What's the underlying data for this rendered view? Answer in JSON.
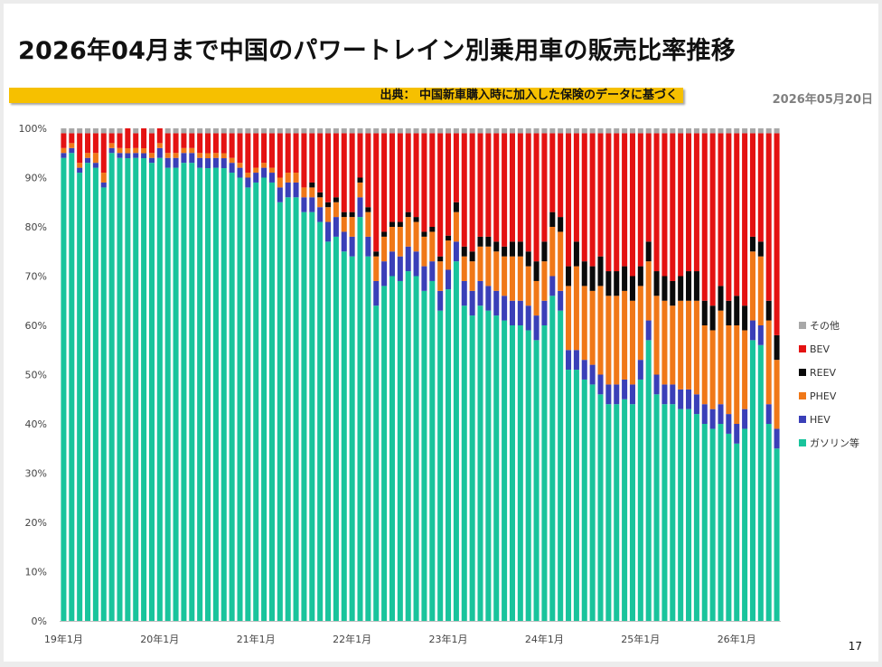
{
  "header": {
    "title": "2026年04月まで中国のパワートレイン別乗用車の販売比率推移",
    "source": "出典： 中国新車購入時に加入した保険のデータに基づく",
    "date": "2026年05月20日",
    "page_number": "17"
  },
  "chart_data": {
    "type": "bar",
    "stacked": true,
    "title": "",
    "xlabel": "",
    "ylabel": "",
    "ylim": [
      0,
      100
    ],
    "grid": false,
    "legend_position": "right",
    "y_ticks": [
      "0%",
      "10%",
      "20%",
      "30%",
      "40%",
      "50%",
      "60%",
      "70%",
      "80%",
      "90%",
      "100%"
    ],
    "x_tick_labels": [
      {
        "label": "19年1月",
        "index": 0
      },
      {
        "label": "20年1月",
        "index": 12
      },
      {
        "label": "21年1月",
        "index": 24
      },
      {
        "label": "22年1月",
        "index": 36
      },
      {
        "label": "23年1月",
        "index": 48
      },
      {
        "label": "24年1月",
        "index": 60
      },
      {
        "label": "25年1月",
        "index": 72
      },
      {
        "label": "26年1月",
        "index": 84
      }
    ],
    "colors": {
      "gasoline": "#19c49c",
      "hev": "#3a3fb8",
      "phev": "#f07818",
      "reev": "#0a0a0a",
      "bev": "#e41212",
      "other": "#a8a8a8"
    },
    "legend": [
      {
        "key": "other",
        "label": "その他"
      },
      {
        "key": "bev",
        "label": "BEV"
      },
      {
        "key": "reev",
        "label": "REEV"
      },
      {
        "key": "phev",
        "label": "PHEV"
      },
      {
        "key": "hev",
        "label": "HEV"
      },
      {
        "key": "gasoline",
        "label": "ガソリン等"
      }
    ],
    "series": [
      {
        "key": "gasoline",
        "values": [
          94,
          95,
          91,
          93,
          92,
          88,
          95,
          94,
          93,
          94,
          93,
          93,
          94,
          92,
          92,
          93,
          93,
          92,
          91,
          92,
          91,
          91,
          90,
          88,
          89,
          90,
          89,
          85,
          86,
          86,
          83,
          83,
          81,
          77,
          78,
          75,
          74,
          82,
          74,
          64,
          68,
          70,
          69,
          71,
          70,
          67,
          69,
          63,
          68,
          73,
          64,
          62,
          64,
          63,
          62,
          61,
          60,
          60,
          59,
          57,
          60,
          66,
          63,
          51,
          51,
          49,
          48,
          46,
          44,
          44,
          45,
          44,
          49,
          57,
          46,
          44,
          44,
          43,
          43,
          42,
          40,
          39,
          40,
          38,
          36,
          39,
          57,
          56,
          40,
          35
        ]
      },
      {
        "key": "hev",
        "values": [
          1,
          1,
          1,
          1,
          1,
          1,
          1,
          1,
          1,
          1,
          1,
          1,
          2,
          2,
          2,
          2,
          2,
          2,
          2,
          2,
          2,
          2,
          2,
          2,
          2,
          2,
          2,
          3,
          3,
          3,
          3,
          3,
          3,
          4,
          4,
          4,
          4,
          4,
          4,
          5,
          5,
          5,
          5,
          5,
          5,
          5,
          4,
          4,
          4,
          4,
          5,
          5,
          5,
          5,
          5,
          5,
          5,
          5,
          5,
          5,
          5,
          4,
          4,
          4,
          4,
          4,
          4,
          4,
          4,
          4,
          4,
          4,
          4,
          4,
          4,
          4,
          4,
          4,
          4,
          4,
          4,
          4,
          4,
          4,
          4,
          4,
          4,
          4,
          4,
          4
        ]
      },
      {
        "key": "phev",
        "values": [
          1,
          1,
          1,
          1,
          2,
          2,
          1,
          1,
          1,
          1,
          1,
          1,
          1,
          1,
          1,
          1,
          1,
          1,
          1,
          1,
          1,
          1,
          1,
          1,
          1,
          1,
          1,
          2,
          2,
          2,
          2,
          2,
          2,
          3,
          3,
          3,
          4,
          3,
          5,
          5,
          5,
          5,
          6,
          6,
          6,
          6,
          6,
          6,
          6,
          6,
          5,
          6,
          7,
          8,
          8,
          8,
          9,
          9,
          8,
          7,
          8,
          10,
          12,
          13,
          17,
          15,
          15,
          18,
          18,
          18,
          18,
          17,
          15,
          12,
          16,
          17,
          16,
          18,
          18,
          19,
          16,
          16,
          19,
          18,
          20,
          16,
          14,
          14,
          17,
          14
        ]
      },
      {
        "key": "reev",
        "values": [
          0,
          0,
          0,
          0,
          0,
          0,
          0,
          0,
          0,
          0,
          0,
          0,
          0,
          0,
          0,
          0,
          0,
          0,
          0,
          0,
          0,
          0,
          0,
          0,
          0,
          0,
          0,
          0,
          0,
          0,
          0,
          1,
          1,
          1,
          1,
          1,
          1,
          1,
          1,
          1,
          1,
          1,
          1,
          1,
          1,
          1,
          1,
          1,
          1,
          2,
          2,
          2,
          2,
          2,
          2,
          2,
          3,
          3,
          3,
          4,
          4,
          3,
          3,
          4,
          5,
          5,
          5,
          6,
          5,
          5,
          5,
          5,
          4,
          4,
          5,
          5,
          5,
          5,
          6,
          6,
          5,
          5,
          5,
          5,
          6,
          5,
          3,
          3,
          4,
          5
        ]
      },
      {
        "key": "bev",
        "values": [
          3,
          2,
          6,
          4,
          4,
          8,
          2,
          3,
          4,
          3,
          4,
          4,
          3,
          4,
          4,
          3,
          3,
          4,
          4,
          4,
          4,
          5,
          6,
          8,
          7,
          6,
          7,
          9,
          8,
          8,
          11,
          10,
          12,
          14,
          13,
          16,
          16,
          9,
          15,
          24,
          20,
          18,
          18,
          16,
          17,
          20,
          19,
          25,
          21,
          14,
          23,
          24,
          21,
          21,
          22,
          23,
          22,
          22,
          24,
          26,
          22,
          16,
          17,
          27,
          22,
          26,
          27,
          25,
          28,
          28,
          27,
          29,
          27,
          22,
          28,
          29,
          30,
          29,
          28,
          28,
          34,
          35,
          31,
          34,
          33,
          35,
          21,
          22,
          34,
          41
        ]
      },
      {
        "key": "other",
        "values": [
          1,
          1,
          1,
          1,
          1,
          1,
          1,
          1,
          0,
          1,
          0,
          1,
          0,
          1,
          1,
          1,
          1,
          1,
          1,
          1,
          1,
          1,
          1,
          1,
          1,
          1,
          1,
          1,
          1,
          1,
          1,
          1,
          1,
          1,
          1,
          1,
          1,
          1,
          1,
          1,
          1,
          1,
          1,
          1,
          1,
          1,
          1,
          1,
          1,
          1,
          1,
          1,
          1,
          1,
          1,
          1,
          1,
          1,
          1,
          1,
          1,
          1,
          1,
          1,
          1,
          1,
          1,
          1,
          1,
          1,
          1,
          1,
          1,
          1,
          1,
          1,
          1,
          1,
          1,
          1,
          1,
          1,
          1,
          1,
          1,
          1,
          1,
          1,
          1,
          1
        ]
      }
    ]
  }
}
